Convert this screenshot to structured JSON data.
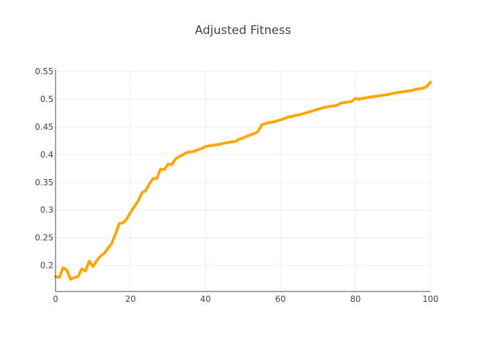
{
  "chart_data": {
    "type": "line",
    "title": "Adjusted Fitness",
    "xlabel": "",
    "ylabel": "",
    "xlim": [
      0,
      100
    ],
    "ylim": [
      0.153,
      0.554
    ],
    "grid": true,
    "x_ticks": [
      0,
      20,
      40,
      60,
      80,
      100
    ],
    "x_tick_labels": [
      "0",
      "20",
      "40",
      "60",
      "80",
      "100"
    ],
    "y_ticks": [
      0.2,
      0.25,
      0.3,
      0.35,
      0.4,
      0.45,
      0.5,
      0.55
    ],
    "y_tick_labels": [
      "0.2",
      "0.25",
      "0.3",
      "0.35",
      "0.4",
      "0.45",
      "0.5",
      "0.55"
    ],
    "colors": {
      "line": "#ffa500",
      "grid": "#eeeeee",
      "axis": "#444444",
      "text": "#444444"
    },
    "series": [
      {
        "x": [
          0,
          1,
          2,
          3,
          4,
          5,
          6,
          7,
          8,
          9,
          10,
          11,
          12,
          13,
          14,
          15,
          16,
          17,
          18,
          19,
          20,
          21,
          22,
          23,
          24,
          25,
          26,
          27,
          28,
          29,
          30,
          31,
          32,
          33,
          34,
          35,
          36,
          37,
          38,
          39,
          40,
          41,
          42,
          43,
          44,
          45,
          46,
          47,
          48,
          49,
          50,
          51,
          52,
          53,
          54,
          55,
          56,
          57,
          58,
          59,
          60,
          61,
          62,
          63,
          64,
          65,
          66,
          67,
          68,
          69,
          70,
          71,
          72,
          73,
          74,
          75,
          76,
          77,
          78,
          79,
          80,
          81,
          82,
          83,
          84,
          85,
          86,
          87,
          88,
          89,
          90,
          91,
          92,
          93,
          94,
          95,
          96,
          97,
          98,
          99,
          100
        ],
        "values": [
          0.18,
          0.178,
          0.196,
          0.192,
          0.175,
          0.178,
          0.18,
          0.194,
          0.19,
          0.208,
          0.198,
          0.209,
          0.217,
          0.222,
          0.231,
          0.24,
          0.257,
          0.276,
          0.277,
          0.284,
          0.296,
          0.306,
          0.316,
          0.331,
          0.335,
          0.347,
          0.357,
          0.357,
          0.374,
          0.373,
          0.383,
          0.382,
          0.392,
          0.397,
          0.4,
          0.404,
          0.405,
          0.406,
          0.409,
          0.411,
          0.415,
          0.416,
          0.417,
          0.418,
          0.419,
          0.421,
          0.422,
          0.423,
          0.424,
          0.428,
          0.43,
          0.433,
          0.436,
          0.438,
          0.442,
          0.454,
          0.456,
          0.458,
          0.459,
          0.461,
          0.463,
          0.465,
          0.468,
          0.469,
          0.471,
          0.472,
          0.474,
          0.476,
          0.478,
          0.48,
          0.482,
          0.484,
          0.486,
          0.487,
          0.488,
          0.489,
          0.493,
          0.494,
          0.495,
          0.496,
          0.502,
          0.5,
          0.502,
          0.503,
          0.504,
          0.505,
          0.506,
          0.507,
          0.508,
          0.509,
          0.511,
          0.512,
          0.513,
          0.514,
          0.515,
          0.516,
          0.518,
          0.519,
          0.52,
          0.523,
          0.531
        ]
      }
    ]
  }
}
